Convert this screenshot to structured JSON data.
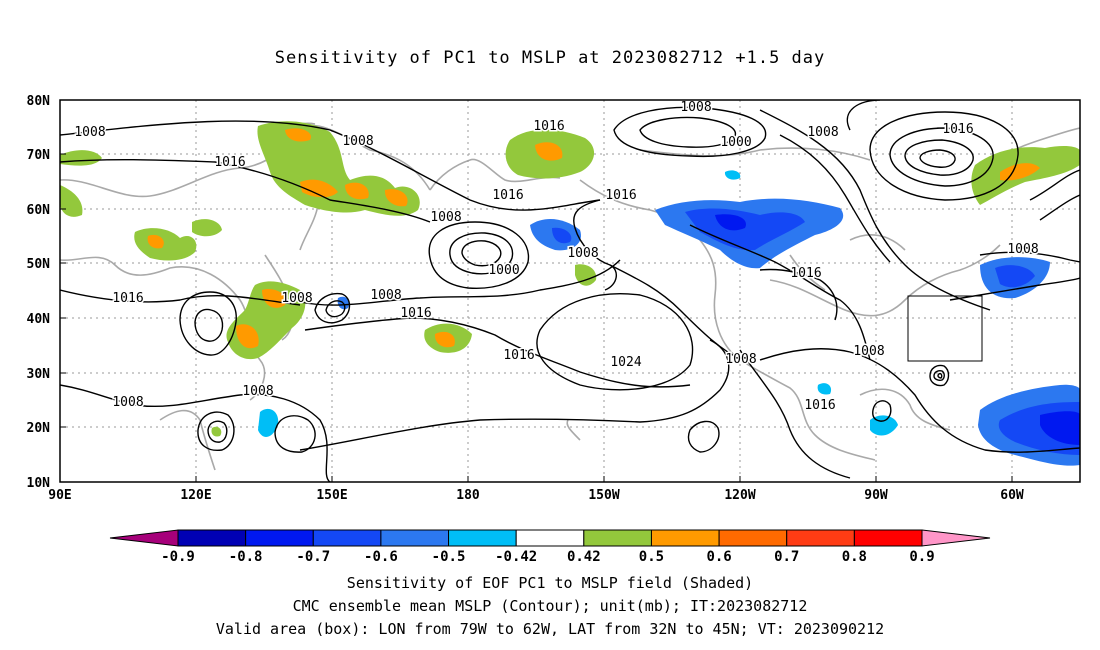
{
  "title": "Sensitivity of PC1 to MSLP at 2023082712 +1.5 day",
  "map": {
    "lat_labels": [
      "80N",
      "70N",
      "60N",
      "50N",
      "40N",
      "30N",
      "20N",
      "10N"
    ],
    "lon_labels": [
      "90E",
      "120E",
      "150E",
      "180",
      "150W",
      "120W",
      "90W",
      "60W"
    ],
    "contour_labels": [
      {
        "text": "1008"
      },
      {
        "text": "1008"
      },
      {
        "text": "1008"
      },
      {
        "text": "1008"
      },
      {
        "text": "1016"
      },
      {
        "text": "1016"
      },
      {
        "text": "1016"
      },
      {
        "text": "1016"
      },
      {
        "text": "1008"
      },
      {
        "text": "1000"
      },
      {
        "text": "1008"
      },
      {
        "text": "1000"
      },
      {
        "text": "1008"
      },
      {
        "text": "1016"
      },
      {
        "text": "1016"
      },
      {
        "text": "1008"
      },
      {
        "text": "1016"
      },
      {
        "text": "1016"
      },
      {
        "text": "1024"
      },
      {
        "text": "1008"
      },
      {
        "text": "1008"
      },
      {
        "text": "1016"
      },
      {
        "text": "1008"
      },
      {
        "text": "1008"
      },
      {
        "text": "1008"
      },
      {
        "text": "1016"
      }
    ]
  },
  "colorbar": {
    "ticks": [
      "-0.9",
      "-0.8",
      "-0.7",
      "-0.6",
      "-0.5",
      "-0.42",
      "0.42",
      "0.5",
      "0.6",
      "0.7",
      "0.8",
      "0.9"
    ],
    "colors": [
      "#a6007a",
      "#0000b4",
      "#0018f0",
      "#1448f5",
      "#2c78f0",
      "#00bef6",
      "#ffffff",
      "#93c83c",
      "#ff9a00",
      "#ff6a00",
      "#ff3c14",
      "#ff0000",
      "#ff96c8"
    ]
  },
  "caption": {
    "line1": "Sensitivity of EOF PC1 to MSLP field (Shaded)",
    "line2": "CMC ensemble mean MSLP (Contour); unit(mb); IT:2023082712",
    "line3": "Valid area (box): LON from 79W to 62W, LAT from 32N to 45N; VT: 2023090212"
  }
}
